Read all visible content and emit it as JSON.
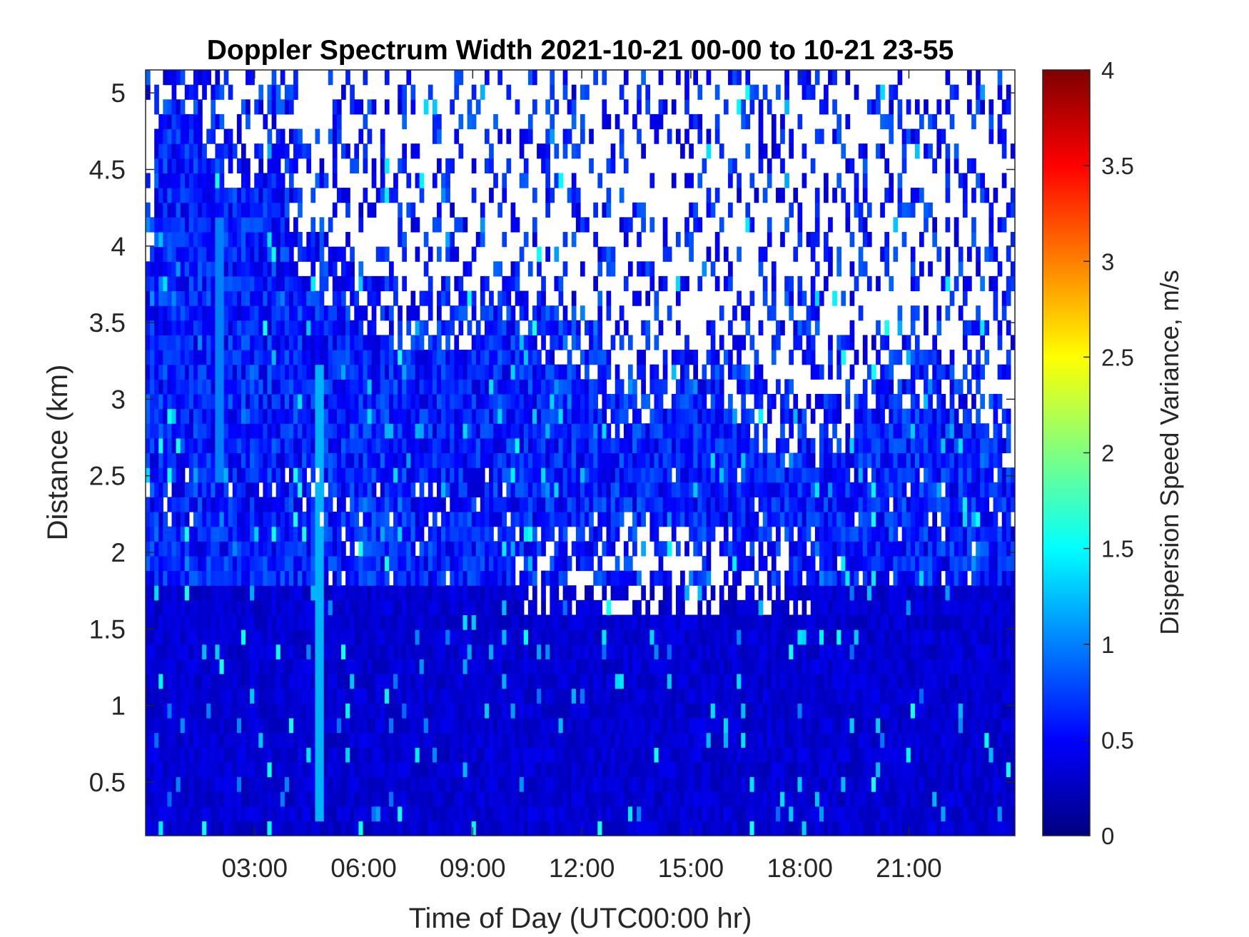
{
  "chart_data": {
    "type": "heatmap",
    "title": "Doppler Spectrum Width 2021-10-21 00-00 to 10-21 23-55",
    "xlabel": "Time of Day (UTC00:00 hr)",
    "ylabel": "Distance (km)",
    "colorbar_label": "Dispersion Speed Variance, m/s",
    "colormap": "jet",
    "x_unit": "hours UTC",
    "xlim": [
      0.0,
      23.9167
    ],
    "ylim": [
      0.15,
      5.15
    ],
    "clim": [
      0,
      4
    ],
    "x_ticks": [
      3,
      6,
      9,
      12,
      15,
      18,
      21
    ],
    "x_tick_labels": [
      "03:00",
      "06:00",
      "09:00",
      "12:00",
      "15:00",
      "18:00",
      "21:00"
    ],
    "y_ticks": [
      0.5,
      1,
      1.5,
      2,
      2.5,
      3,
      3.5,
      4,
      4.5,
      5
    ],
    "y_tick_labels": [
      "0.5",
      "1",
      "1.5",
      "2",
      "2.5",
      "3",
      "3.5",
      "4",
      "4.5",
      "5"
    ],
    "colorbar_ticks": [
      0,
      0.5,
      1,
      1.5,
      2,
      2.5,
      3,
      3.5,
      4
    ],
    "colorbar_tick_labels": [
      "0",
      "0.5",
      "1",
      "1.5",
      "2",
      "2.5",
      "3",
      "3.5",
      "4"
    ],
    "grid": false,
    "legend": "none",
    "no_data_color": "#ffffff",
    "typical_value_range": [
      0.2,
      0.8
    ],
    "data_top_km": [
      [
        0.0,
        3.9
      ],
      [
        0.5,
        4.9
      ],
      [
        1.0,
        5.15
      ],
      [
        2.0,
        4.7
      ],
      [
        3.0,
        4.4
      ],
      [
        3.5,
        5.0
      ],
      [
        4.2,
        4.1
      ],
      [
        5.0,
        3.9
      ],
      [
        6.0,
        3.7
      ],
      [
        7.0,
        3.6
      ],
      [
        8.0,
        3.55
      ],
      [
        9.0,
        3.6
      ],
      [
        10.0,
        3.8
      ],
      [
        10.5,
        3.6
      ],
      [
        11.0,
        3.5
      ],
      [
        12.0,
        3.4
      ],
      [
        13.0,
        2.95
      ],
      [
        14.0,
        3.1
      ],
      [
        15.0,
        3.2
      ],
      [
        16.0,
        3.15
      ],
      [
        17.0,
        2.9
      ],
      [
        18.0,
        2.8
      ],
      [
        19.0,
        2.9
      ],
      [
        20.0,
        3.05
      ],
      [
        21.0,
        3.2
      ],
      [
        22.0,
        3.2
      ],
      [
        23.0,
        3.05
      ],
      [
        23.9167,
        2.7
      ]
    ],
    "gap_layers": [
      {
        "x": [
          10.0,
          19.2
        ],
        "y": [
          1.6,
          2.2
        ]
      }
    ],
    "features": [
      {
        "x": 4.75,
        "y": [
          0.2,
          3.2
        ],
        "value": 1.2
      },
      {
        "x": 2.05,
        "y": [
          2.5,
          4.2
        ],
        "value": 1.0
      }
    ]
  }
}
